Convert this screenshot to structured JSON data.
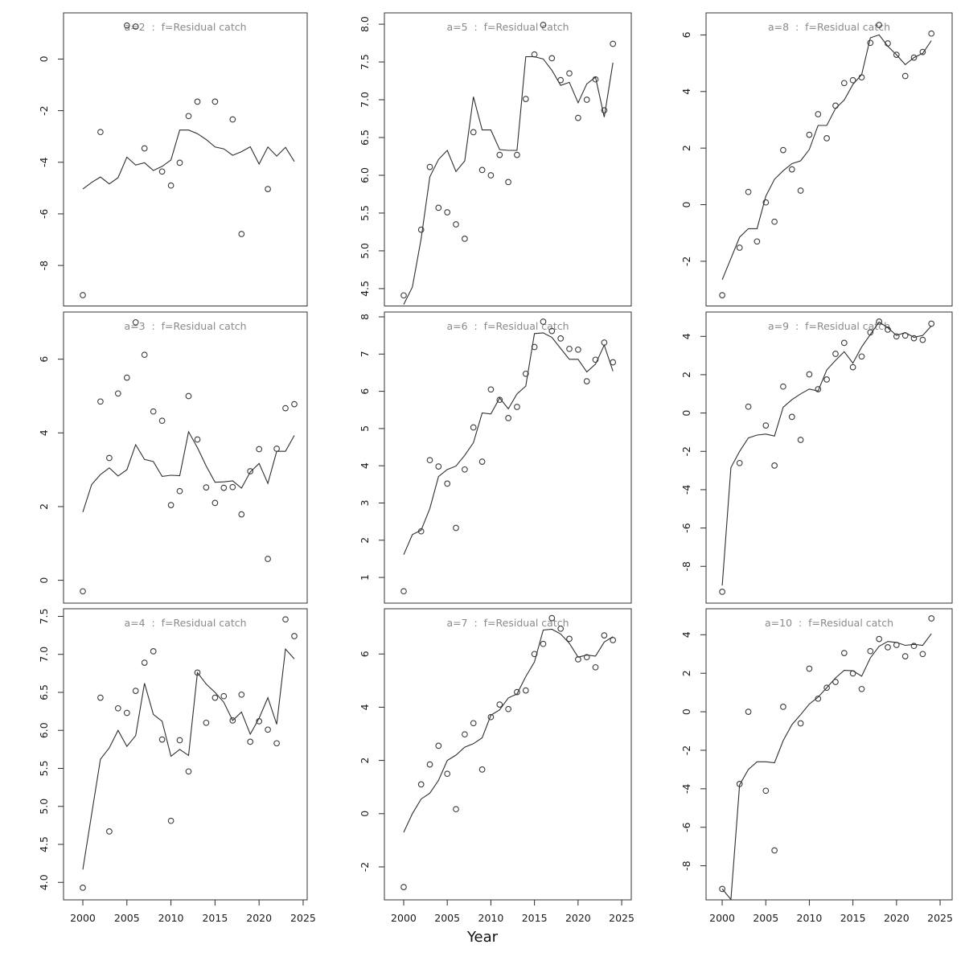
{
  "figure": {
    "xlabel": "Year",
    "background": "#ffffff",
    "title_color": "#8a8a8a",
    "axis_color": "#2b2b2b",
    "series_color": "#2f2f2f"
  },
  "chart_data": {
    "type": "scatter",
    "description": "3x3 grid of residual-catch-at-age diagnostic panels: open-circle observations with fitted line, by age a=2..10",
    "x_axis_label": "Year",
    "x_ticks": [
      2000,
      2005,
      2010,
      2015,
      2020,
      2025
    ],
    "line_years": [
      2000,
      2001,
      2002,
      2003,
      2004,
      2005,
      2006,
      2007,
      2008,
      2009,
      2010,
      2011,
      2012,
      2013,
      2014,
      2015,
      2016,
      2017,
      2018,
      2019,
      2020,
      2021,
      2022,
      2023,
      2024
    ],
    "panels": [
      {
        "id": "a2",
        "title": "a=2  :  f=Residual catch",
        "row": 0,
        "col": 0,
        "xlim": [
          1997.81,
          2025.46
        ],
        "ylim": [
          -9.57,
          1.79
        ],
        "ytick_values": [
          0,
          -2,
          -4,
          -6,
          -8
        ],
        "ytick_labels": [
          "0",
          "-2",
          "-4",
          "-6",
          "-8"
        ],
        "points": {
          "x": [
            2000,
            2002,
            2005,
            2006,
            2007,
            2009,
            2010,
            2011,
            2012,
            2013,
            2015,
            2017,
            2018,
            2021
          ],
          "y": [
            -9.15,
            -2.83,
            1.3,
            1.26,
            -3.46,
            -4.36,
            -4.9,
            -4.02,
            -2.21,
            -1.65,
            -1.65,
            -2.34,
            -6.78,
            -5.04
          ]
        },
        "line": {
          "y": [
            -5.04,
            -4.78,
            -4.57,
            -4.84,
            -4.6,
            -3.8,
            -4.11,
            -4.02,
            -4.32,
            -4.16,
            -3.91,
            -2.75,
            -2.75,
            -2.89,
            -3.12,
            -3.41,
            -3.48,
            -3.73,
            -3.59,
            -3.4,
            -4.07,
            -3.41,
            -3.76,
            -3.42,
            -3.97
          ]
        }
      },
      {
        "id": "a5",
        "title": "a=5  :  f=Residual catch",
        "row": 0,
        "col": 1,
        "xlim": [
          1997.79,
          2026.1
        ],
        "ylim": [
          4.27,
          8.15
        ],
        "ytick_values": [
          8.0,
          7.5,
          7.0,
          6.5,
          6.0,
          5.5,
          5.0,
          4.5
        ],
        "ytick_labels": [
          "8.0",
          "7.5",
          "7.0",
          "6.5",
          "6.0",
          "5.5",
          "5.0",
          "4.5"
        ],
        "points": {
          "x": [
            2000,
            2002,
            2003,
            2004,
            2005,
            2006,
            2007,
            2008,
            2009,
            2010,
            2011,
            2012,
            2013,
            2014,
            2015,
            2016,
            2017,
            2018,
            2019,
            2020,
            2021,
            2022,
            2023,
            2024
          ],
          "y": [
            4.41,
            5.28,
            6.11,
            5.57,
            5.51,
            5.35,
            5.16,
            6.57,
            6.07,
            6.0,
            6.27,
            5.91,
            6.27,
            7.01,
            7.6,
            7.99,
            7.55,
            7.26,
            7.35,
            6.76,
            7.0,
            7.27,
            6.86,
            7.74
          ]
        },
        "line": {
          "y": [
            4.29,
            4.52,
            5.16,
            5.98,
            6.21,
            6.33,
            6.05,
            6.19,
            7.04,
            6.6,
            6.6,
            6.34,
            6.33,
            6.33,
            7.57,
            7.57,
            7.54,
            7.39,
            7.19,
            7.23,
            6.96,
            7.21,
            7.3,
            6.77,
            7.49
          ]
        }
      },
      {
        "id": "a8",
        "title": "a=8  :  f=Residual catch",
        "row": 0,
        "col": 2,
        "xlim": [
          1998.15,
          2026.38
        ],
        "ylim": [
          -3.58,
          6.78
        ],
        "ytick_values": [
          6,
          4,
          2,
          0,
          -2
        ],
        "ytick_labels": [
          "6",
          "4",
          "2",
          "0",
          "-2"
        ],
        "points": {
          "x": [
            2000,
            2002,
            2003,
            2004,
            2005,
            2006,
            2007,
            2008,
            2009,
            2010,
            2011,
            2012,
            2013,
            2014,
            2015,
            2016,
            2017,
            2018,
            2019,
            2020,
            2021,
            2022,
            2023,
            2024
          ],
          "y": [
            -3.2,
            -1.52,
            0.45,
            -1.3,
            0.08,
            -0.6,
            1.93,
            1.25,
            0.5,
            2.47,
            3.2,
            2.35,
            3.5,
            4.3,
            4.4,
            4.5,
            5.72,
            6.35,
            5.7,
            5.3,
            4.55,
            5.2,
            5.4,
            6.05
          ]
        },
        "line": {
          "y": [
            -2.65,
            -1.9,
            -1.15,
            -0.85,
            -0.85,
            0.3,
            0.9,
            1.2,
            1.45,
            1.55,
            1.95,
            2.8,
            2.8,
            3.4,
            3.7,
            4.25,
            4.6,
            5.9,
            6.0,
            5.6,
            5.3,
            4.95,
            5.2,
            5.35,
            5.8
          ]
        }
      },
      {
        "id": "a3",
        "title": "a=3  :  f=Residual catch",
        "row": 1,
        "col": 0,
        "xlim": [
          1997.81,
          2025.46
        ],
        "ylim": [
          -0.62,
          7.28
        ],
        "ytick_values": [
          6,
          4,
          2,
          0
        ],
        "ytick_labels": [
          "6",
          "4",
          "2",
          "0"
        ],
        "points": {
          "x": [
            2000,
            2002,
            2003,
            2004,
            2005,
            2006,
            2007,
            2008,
            2009,
            2010,
            2011,
            2012,
            2013,
            2014,
            2015,
            2016,
            2017,
            2018,
            2019,
            2020,
            2021,
            2022,
            2023,
            2024
          ],
          "y": [
            -0.3,
            4.85,
            3.32,
            5.07,
            5.5,
            7.0,
            6.12,
            4.58,
            4.33,
            2.04,
            2.42,
            5.0,
            3.82,
            2.52,
            2.1,
            2.51,
            2.53,
            1.79,
            2.96,
            3.56,
            0.58,
            3.57,
            4.67,
            4.78
          ]
        },
        "line": {
          "y": [
            1.85,
            2.6,
            2.87,
            3.05,
            2.83,
            3.0,
            3.68,
            3.28,
            3.22,
            2.82,
            2.85,
            2.84,
            4.03,
            3.6,
            3.1,
            2.66,
            2.67,
            2.7,
            2.5,
            2.94,
            3.17,
            2.63,
            3.5,
            3.5,
            3.93
          ]
        }
      },
      {
        "id": "a6",
        "title": "a=6  :  f=Residual catch",
        "row": 1,
        "col": 1,
        "xlim": [
          1997.79,
          2026.1
        ],
        "ylim": [
          0.31,
          8.13
        ],
        "ytick_values": [
          8,
          7,
          6,
          5,
          4,
          3,
          2,
          1
        ],
        "ytick_labels": [
          "8",
          "7",
          "6",
          "5",
          "4",
          "3",
          "2",
          "1"
        ],
        "points": {
          "x": [
            2000,
            2002,
            2003,
            2004,
            2005,
            2006,
            2007,
            2008,
            2009,
            2010,
            2011,
            2012,
            2013,
            2014,
            2015,
            2016,
            2017,
            2018,
            2019,
            2020,
            2021,
            2022,
            2023,
            2024
          ],
          "y": [
            0.63,
            2.24,
            4.15,
            3.98,
            3.52,
            2.33,
            3.9,
            5.03,
            4.11,
            6.05,
            5.77,
            5.28,
            5.58,
            6.47,
            7.19,
            7.87,
            7.62,
            7.42,
            7.14,
            7.12,
            6.27,
            6.85,
            7.31,
            6.78
          ]
        },
        "line": {
          "y": [
            1.61,
            2.15,
            2.27,
            2.85,
            3.71,
            3.9,
            3.99,
            4.28,
            4.62,
            5.42,
            5.39,
            5.82,
            5.53,
            5.93,
            6.14,
            7.55,
            7.57,
            7.45,
            7.15,
            6.86,
            6.86,
            6.52,
            6.73,
            7.24,
            6.54
          ]
        }
      },
      {
        "id": "a9",
        "title": "a=9  :  f=Residual catch",
        "row": 1,
        "col": 2,
        "xlim": [
          1998.15,
          2026.38
        ],
        "ylim": [
          -9.92,
          5.27
        ],
        "ytick_values": [
          4,
          2,
          0,
          -2,
          -4,
          -6,
          -8
        ],
        "ytick_labels": [
          "4",
          "2",
          "0",
          "-2",
          "-4",
          "-6",
          "-8"
        ],
        "points": {
          "x": [
            2000,
            2002,
            2003,
            2005,
            2006,
            2007,
            2008,
            2009,
            2010,
            2011,
            2012,
            2013,
            2014,
            2015,
            2016,
            2017,
            2018,
            2019,
            2020,
            2021,
            2022,
            2023,
            2024
          ],
          "y": [
            -9.33,
            -2.61,
            0.33,
            -0.65,
            -2.74,
            1.38,
            -0.2,
            -1.4,
            2.02,
            1.24,
            1.75,
            3.09,
            3.66,
            2.39,
            2.95,
            4.21,
            4.77,
            4.35,
            4.0,
            4.04,
            3.9,
            3.82,
            4.66
          ]
        },
        "line": {
          "y": [
            -9.0,
            -2.85,
            -2.0,
            -1.3,
            -1.15,
            -1.1,
            -1.2,
            0.3,
            0.7,
            1.0,
            1.25,
            1.15,
            2.25,
            2.75,
            3.2,
            2.6,
            3.45,
            4.1,
            4.75,
            4.45,
            4.05,
            4.2,
            3.95,
            4.05,
            4.55
          ]
        }
      },
      {
        "id": "a4",
        "title": "a=4  :  f=Residual catch",
        "row": 2,
        "col": 0,
        "xlim": [
          1997.81,
          2025.46
        ],
        "ylim": [
          3.77,
          7.6
        ],
        "ytick_values": [
          7.5,
          7.0,
          6.5,
          6.0,
          5.5,
          5.0,
          4.5,
          4.0
        ],
        "ytick_labels": [
          "7.5",
          "7.0",
          "6.5",
          "6.0",
          "5.5",
          "5.0",
          "4.5",
          "4.0"
        ],
        "points": {
          "x": [
            2000,
            2002,
            2003,
            2004,
            2005,
            2006,
            2007,
            2008,
            2009,
            2010,
            2011,
            2012,
            2013,
            2014,
            2015,
            2016,
            2017,
            2018,
            2019,
            2020,
            2021,
            2022,
            2023,
            2024
          ],
          "y": [
            3.93,
            6.43,
            4.67,
            6.29,
            6.23,
            6.52,
            6.89,
            7.04,
            5.88,
            4.81,
            5.87,
            5.46,
            6.76,
            6.1,
            6.43,
            6.45,
            6.13,
            6.47,
            5.85,
            6.12,
            6.01,
            5.83,
            7.46,
            7.24
          ]
        },
        "line": {
          "y": [
            4.17,
            4.9,
            5.62,
            5.77,
            6.0,
            5.79,
            5.93,
            6.62,
            6.21,
            6.12,
            5.66,
            5.75,
            5.67,
            6.76,
            6.61,
            6.5,
            6.37,
            6.13,
            6.24,
            5.95,
            6.16,
            6.43,
            6.08,
            7.07,
            6.94
          ]
        }
      },
      {
        "id": "a7",
        "title": "a=7  :  f=Residual catch",
        "row": 2,
        "col": 1,
        "xlim": [
          1997.79,
          2026.1
        ],
        "ylim": [
          -3.24,
          7.7
        ],
        "ytick_values": [
          6,
          4,
          2,
          0,
          -2
        ],
        "ytick_labels": [
          "6",
          "4",
          "2",
          "0",
          "-2"
        ],
        "points": {
          "x": [
            2000,
            2002,
            2003,
            2004,
            2005,
            2006,
            2007,
            2008,
            2009,
            2010,
            2011,
            2012,
            2013,
            2014,
            2015,
            2016,
            2017,
            2018,
            2019,
            2020,
            2021,
            2022,
            2023,
            2024
          ],
          "y": [
            -2.76,
            1.1,
            1.85,
            2.55,
            1.5,
            0.17,
            2.98,
            3.4,
            1.66,
            3.63,
            4.1,
            3.93,
            4.57,
            4.63,
            6.0,
            6.38,
            7.35,
            6.95,
            6.57,
            5.8,
            5.88,
            5.5,
            6.7,
            6.52
          ]
        },
        "line": {
          "y": [
            -0.7,
            0.0,
            0.55,
            0.77,
            1.25,
            2.0,
            2.2,
            2.5,
            2.63,
            2.85,
            3.7,
            3.9,
            4.35,
            4.5,
            5.15,
            5.7,
            6.9,
            6.93,
            6.75,
            6.4,
            5.88,
            5.96,
            5.92,
            6.45,
            6.65
          ]
        }
      },
      {
        "id": "a10",
        "title": "a=10  :  f=Residual catch",
        "row": 2,
        "col": 2,
        "xlim": [
          1998.15,
          2026.38
        ],
        "ylim": [
          -9.77,
          5.35
        ],
        "ytick_values": [
          4,
          2,
          0,
          -2,
          -4,
          -6,
          -8
        ],
        "ytick_labels": [
          "4",
          "2",
          "0",
          "-2",
          "-4",
          "-6",
          "-8"
        ],
        "points": {
          "x": [
            2000,
            2002,
            2003,
            2005,
            2006,
            2007,
            2009,
            2010,
            2011,
            2012,
            2013,
            2014,
            2015,
            2016,
            2017,
            2018,
            2019,
            2020,
            2021,
            2022,
            2023,
            2024
          ],
          "y": [
            -9.2,
            -3.75,
            0.0,
            -4.1,
            -7.2,
            0.26,
            -0.6,
            2.24,
            0.68,
            1.25,
            1.55,
            3.05,
            1.99,
            1.18,
            3.15,
            3.78,
            3.35,
            3.47,
            2.88,
            3.42,
            3.0,
            4.85
          ]
        },
        "line": {
          "y": [
            -9.2,
            -9.75,
            -3.8,
            -3.0,
            -2.6,
            -2.6,
            -2.65,
            -1.5,
            -0.67,
            -0.15,
            0.4,
            0.76,
            1.25,
            1.76,
            2.15,
            2.13,
            1.85,
            2.8,
            3.4,
            3.65,
            3.6,
            3.45,
            3.5,
            3.45,
            4.05
          ]
        }
      }
    ]
  }
}
